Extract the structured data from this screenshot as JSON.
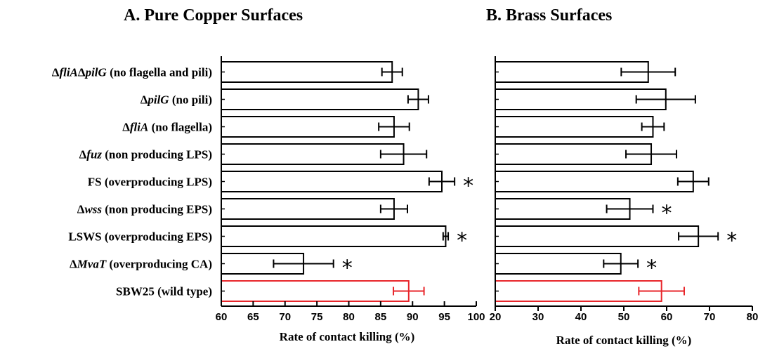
{
  "chart_data": [
    {
      "type": "bar",
      "orientation": "horizontal",
      "title": "A.   Pure Copper Surfaces",
      "xlabel": "Rate of contact killing (%)",
      "xlim": [
        60,
        100
      ],
      "xticks": [
        "60",
        "65",
        "70",
        "75",
        "80",
        "85",
        "90",
        "95",
        "100"
      ],
      "categories": [
        {
          "parts": [
            [
              "Δ",
              ""
            ],
            [
              "fliA",
              "it"
            ],
            [
              "Δ",
              ""
            ],
            [
              "pilG",
              "it"
            ],
            [
              " (no flagella and pili)",
              ""
            ]
          ],
          "label": "ΔfliAΔpilG (no flagella and pili)"
        },
        {
          "parts": [
            [
              "Δ",
              ""
            ],
            [
              "pilG",
              "it"
            ],
            [
              " (no pili)",
              ""
            ]
          ],
          "label": "ΔpilG (no pili)"
        },
        {
          "parts": [
            [
              "Δ",
              ""
            ],
            [
              "fliA",
              "it"
            ],
            [
              " (no flagella)",
              ""
            ]
          ],
          "label": "ΔfliA (no flagella)"
        },
        {
          "parts": [
            [
              "Δ",
              ""
            ],
            [
              "fuz",
              "it"
            ],
            [
              " (non producing LPS)",
              ""
            ]
          ],
          "label": "Δfuz (non producing LPS)"
        },
        {
          "parts": [
            [
              "FS (overproducing LPS)",
              ""
            ]
          ],
          "label": "FS (overproducing LPS)"
        },
        {
          "parts": [
            [
              "Δ",
              ""
            ],
            [
              "wss",
              "it"
            ],
            [
              " (non producing EPS)",
              ""
            ]
          ],
          "label": "Δwss (non producing EPS)"
        },
        {
          "parts": [
            [
              "LSWS (overproducing EPS)",
              ""
            ]
          ],
          "label": "LSWS (overproducing EPS)"
        },
        {
          "parts": [
            [
              "Δ",
              ""
            ],
            [
              "MvaT",
              "it"
            ],
            [
              " (overproducing CA)",
              ""
            ]
          ],
          "label": "ΔMvaT (overproducing CA)"
        },
        {
          "parts": [
            [
              "SBW25 (wild type)",
              ""
            ]
          ],
          "label": "SBW25 (wild type)"
        }
      ],
      "values": [
        86.8,
        90.9,
        87.1,
        88.6,
        94.6,
        87.1,
        95.2,
        72.9,
        89.4
      ],
      "errors": [
        1.6,
        1.6,
        2.4,
        3.6,
        2.0,
        2.1,
        0.4,
        4.7,
        2.4
      ],
      "significant": [
        false,
        false,
        false,
        false,
        true,
        false,
        true,
        true,
        false
      ],
      "star_symbol": "*",
      "colors": {
        "bar": "#000000",
        "control": "#e8262b"
      },
      "control_index": 8
    },
    {
      "type": "bar",
      "orientation": "horizontal",
      "title": "B.   Brass Surfaces",
      "xlabel": "Rate of contact killing (%)",
      "xlim": [
        20,
        80
      ],
      "xticks": [
        "20",
        "30",
        "40",
        "50",
        "60",
        "70",
        "80"
      ],
      "values": [
        55.7,
        59.8,
        56.8,
        56.4,
        66.2,
        51.4,
        67.4,
        49.3,
        58.8
      ],
      "errors": [
        6.3,
        6.9,
        2.6,
        5.9,
        3.6,
        5.4,
        4.6,
        4.0,
        5.3
      ],
      "significant": [
        false,
        false,
        false,
        false,
        false,
        true,
        true,
        true,
        false
      ],
      "star_symbol": "*",
      "colors": {
        "bar": "#000000",
        "control": "#e8262b"
      },
      "control_index": 8
    }
  ]
}
